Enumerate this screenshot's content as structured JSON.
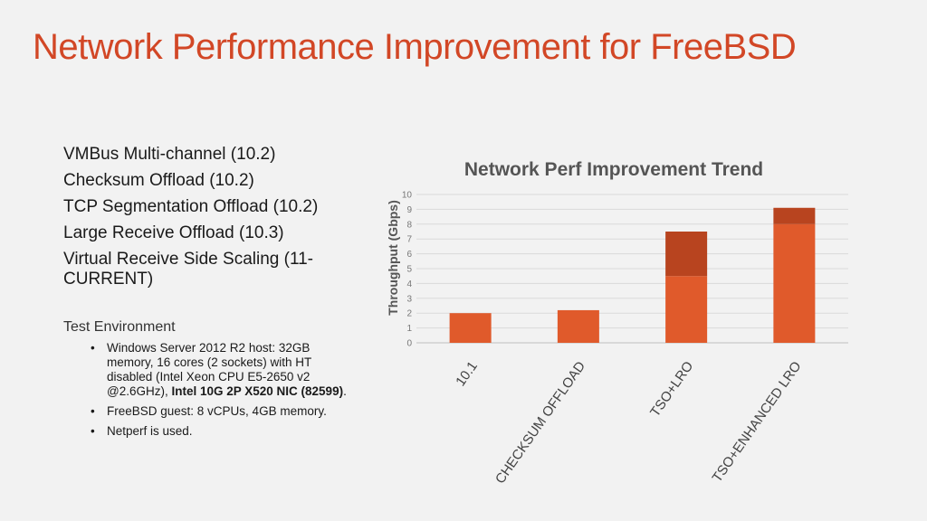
{
  "slide": {
    "title": "Network Performance Improvement for FreeBSD",
    "features": [
      "VMBus Multi-channel (10.2)",
      "Checksum Offload (10.2)",
      "TCP Segmentation Offload (10.2)",
      "Large Receive Offload (10.3)",
      "Virtual Receive Side Scaling (11-CURRENT)"
    ],
    "test_env": {
      "title": "Test Environment",
      "host_text": "Windows Server 2012 R2 host: 32GB memory, 16 cores (2 sockets) with HT disabled (Intel Xeon CPU E5-2650 v2 @2.6GHz), ",
      "host_bold": "Intel 10G 2P X520 NIC (82599)",
      "host_end": ".",
      "guest": "FreeBSD guest: 8 vCPUs, 4GB memory.",
      "tool": "Netperf is used."
    }
  },
  "colors": {
    "title": "#d24726",
    "bar_base": "#e05a2b",
    "bar_top": "#b8441f",
    "grid": "#d9d9d9"
  },
  "chart_data": {
    "type": "bar",
    "stacked": true,
    "title": "Network Perf Improvement Trend",
    "xlabel": "",
    "ylabel": "Throughput (Gbps)",
    "ylim": [
      0,
      10
    ],
    "yticks": [
      0,
      1,
      2,
      3,
      4,
      5,
      6,
      7,
      8,
      9,
      10
    ],
    "grid": true,
    "legend": "none",
    "categories": [
      "10.1",
      "CHECKSUM OFFLOAD",
      "TSO+LRO",
      "TSO+ENHANCED LRO"
    ],
    "series": [
      {
        "values": [
          2.0,
          2.2,
          4.5,
          8.0
        ]
      },
      {
        "values": [
          0,
          0,
          3.0,
          1.1
        ]
      }
    ]
  }
}
